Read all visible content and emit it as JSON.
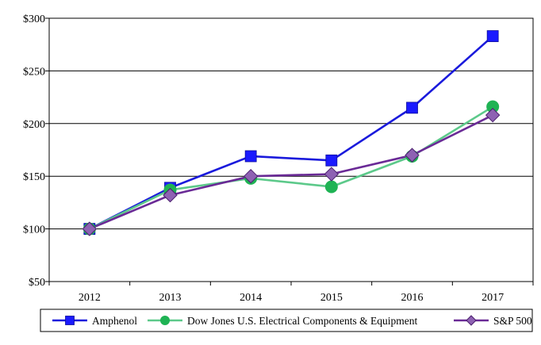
{
  "chart_data": {
    "type": "line",
    "title": "",
    "xlabel": "",
    "ylabel": "",
    "categories": [
      "2012",
      "2013",
      "2014",
      "2015",
      "2016",
      "2017"
    ],
    "ylim": [
      50,
      300
    ],
    "yticks": [
      50,
      100,
      150,
      200,
      250,
      300
    ],
    "ytick_labels": [
      "$50",
      "$100",
      "$150",
      "$200",
      "$250",
      "$300"
    ],
    "grid": "horizontal",
    "legend_position": "bottom",
    "series": [
      {
        "name": "Amphenol",
        "marker": "square",
        "color": "#1a1adc",
        "marker_color": "#1a1aff",
        "values": [
          100,
          139,
          169,
          165,
          215,
          283
        ]
      },
      {
        "name": "Dow Jones U.S. Electrical Components & Equipment",
        "marker": "circle",
        "color": "#5cc98a",
        "marker_color": "#1fb354",
        "values": [
          100,
          137,
          148,
          140,
          169,
          216
        ]
      },
      {
        "name": "S&P 500",
        "marker": "diamond",
        "color": "#6a2a96",
        "marker_color": "#8e62b3",
        "values": [
          100,
          132,
          150,
          152,
          170,
          208
        ]
      }
    ]
  }
}
